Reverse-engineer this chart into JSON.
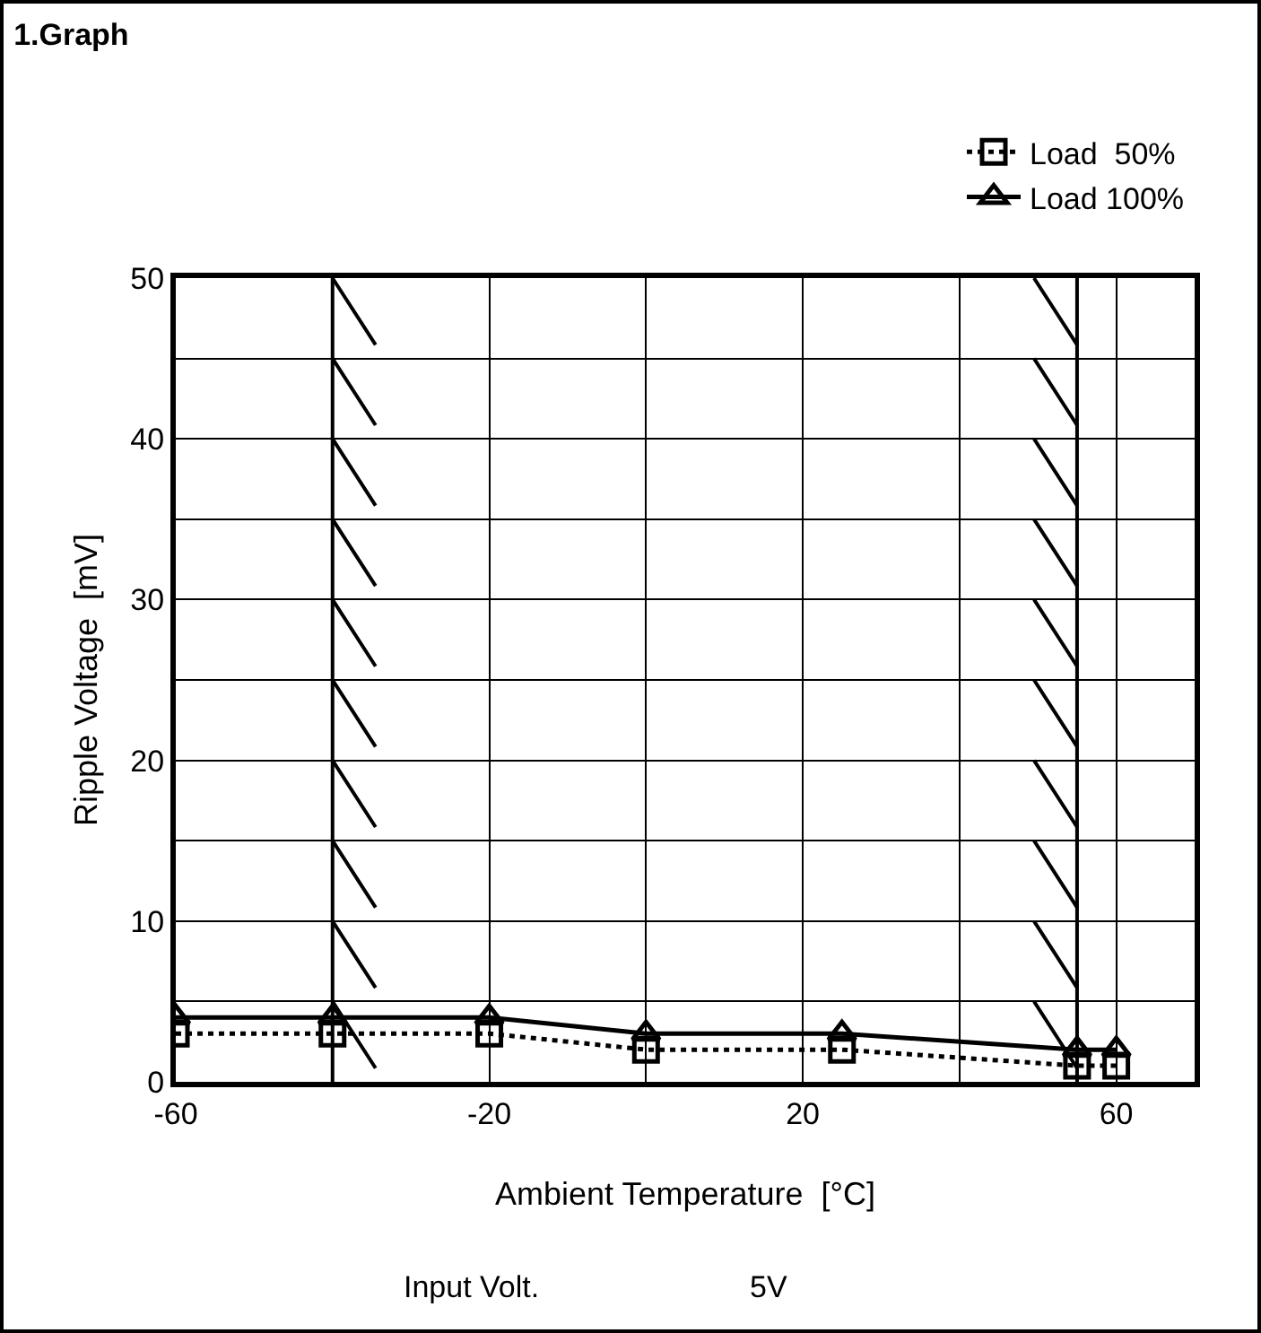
{
  "chart_data": {
    "type": "line",
    "title": "1.Graph",
    "xlabel": "Ambient Temperature  [°C]",
    "ylabel": "Ripple Voltage  [mV]",
    "x": [
      -60,
      -40,
      -20,
      0,
      25,
      55,
      60
    ],
    "series": [
      {
        "name": "Load  50%",
        "color": "#000000",
        "values": [
          3,
          3,
          3,
          2,
          2,
          1,
          1
        ],
        "marker": "square",
        "line_style": "dotted"
      },
      {
        "name": "Load 100%",
        "color": "#000000",
        "values": [
          4,
          4,
          4,
          3,
          3,
          2,
          2
        ],
        "marker": "triangle",
        "line_style": "solid"
      }
    ],
    "xlim": [
      -60,
      70
    ],
    "xticks": [
      -60,
      {
        "value": -40,
        "label": null
      },
      -20,
      {
        "value": 0,
        "label": null
      },
      20,
      {
        "value": 40,
        "label": null
      },
      60
    ],
    "ylim": [
      0,
      50
    ],
    "yticks": [
      0,
      {
        "value": 5,
        "label": null
      },
      10,
      {
        "value": 15,
        "label": null
      },
      20,
      {
        "value": 25,
        "label": null
      },
      30,
      {
        "value": 35,
        "label": null
      },
      40,
      {
        "value": 45,
        "label": null
      },
      50
    ],
    "ref_lines": [
      {
        "axis": "x",
        "value": -40,
        "label": null
      },
      {
        "axis": "x",
        "value": 55,
        "label": null
      }
    ],
    "grid": true,
    "legend": "top right",
    "annotations": [
      "Input Volt.",
      "5V"
    ]
  }
}
